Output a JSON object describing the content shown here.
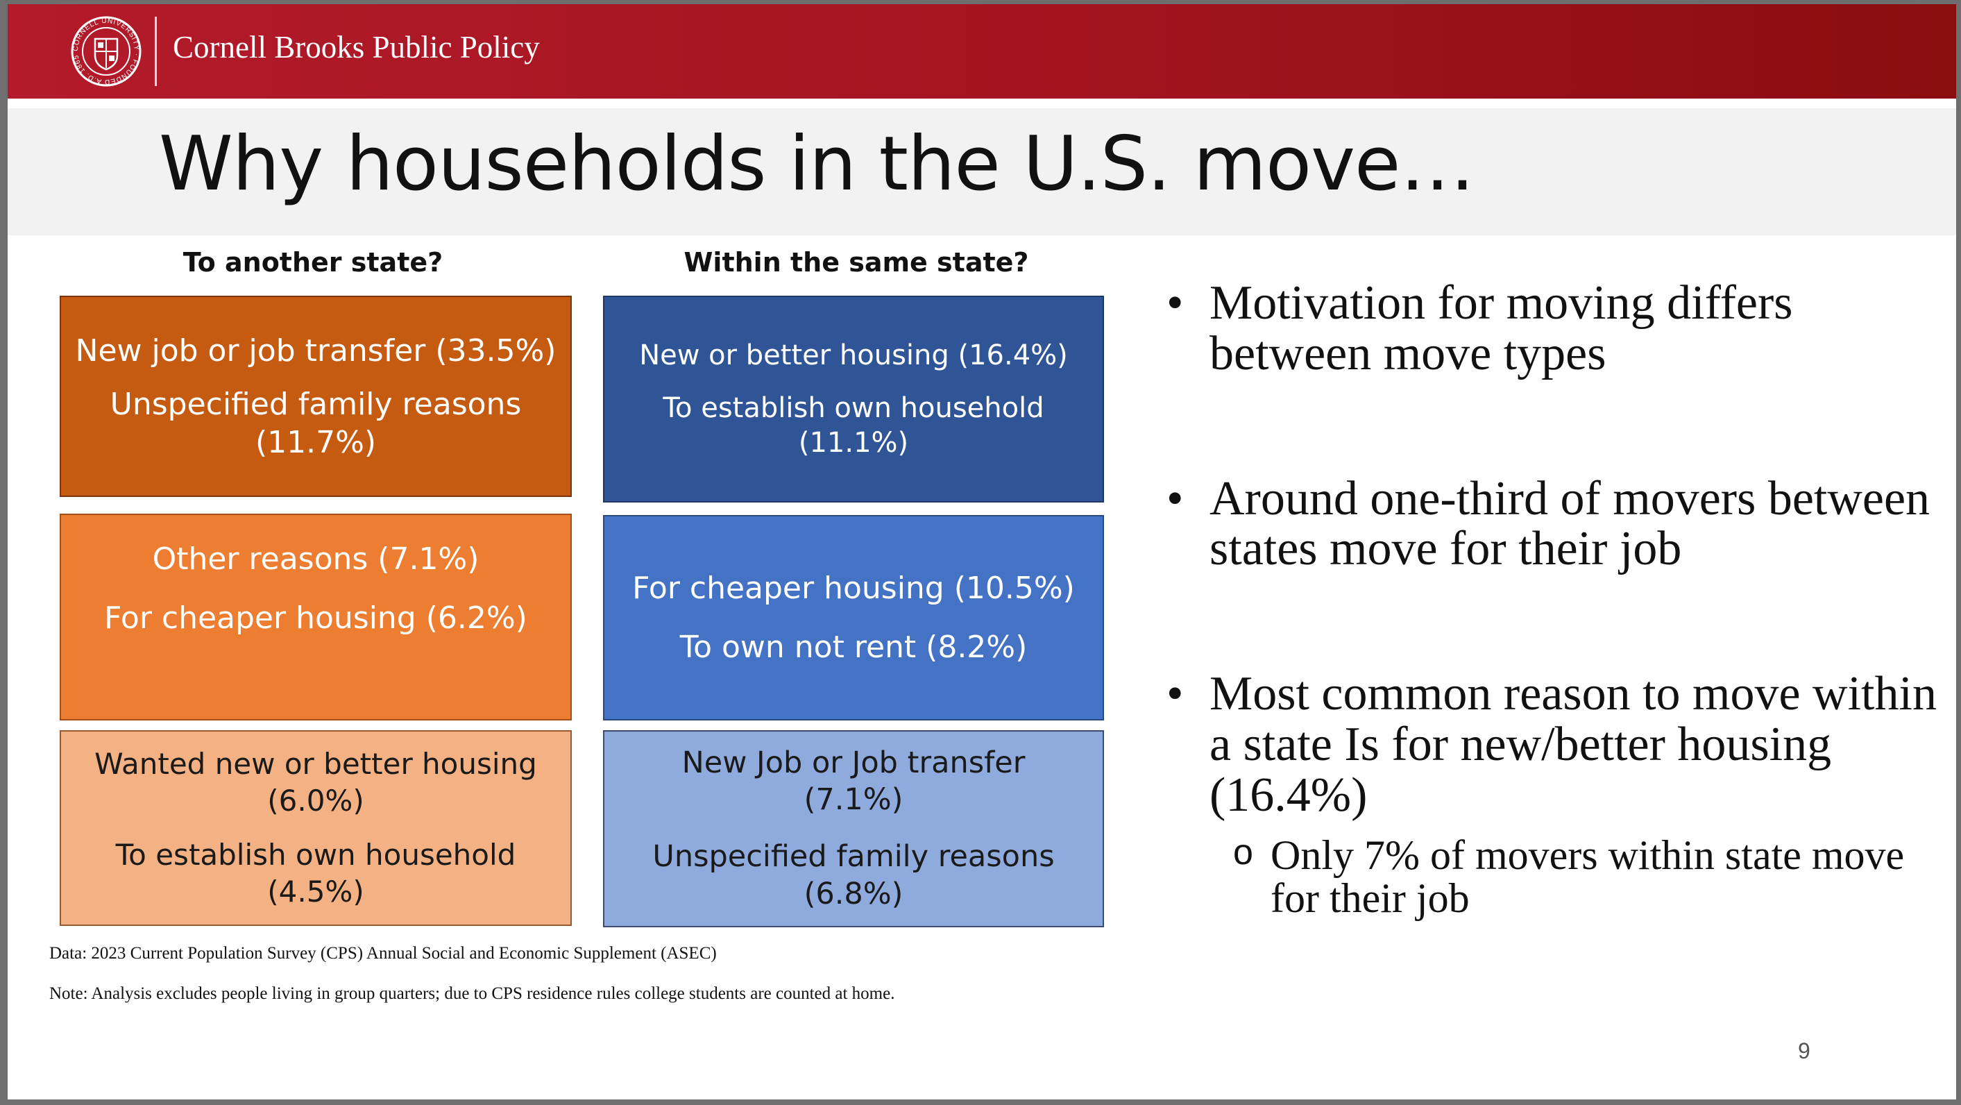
{
  "header": {
    "brand": "Cornell Brooks Public Policy",
    "seal_text": "CORNELL UNIVERSITY · FOUNDED A.D. 1865"
  },
  "title": "Why households in the U.S. move…",
  "columns": [
    {
      "heading": "To another state?",
      "boxes": [
        {
          "color": "#c55a11",
          "lines": [
            "New job or job transfer (33.5%)",
            "Unspecified family reasons (11.7%)"
          ]
        },
        {
          "color": "#ed7d31",
          "lines": [
            "Other reasons (7.1%)",
            "For cheaper housing (6.2%)"
          ]
        },
        {
          "color": "#f4b183",
          "lines": [
            "Wanted new or better housing (6.0%)",
            "To establish own household (4.5%)"
          ]
        }
      ]
    },
    {
      "heading": "Within the same state?",
      "boxes": [
        {
          "color": "#2f5597",
          "lines": [
            "New or better housing (16.4%)",
            "To establish own household (11.1%)"
          ]
        },
        {
          "color": "#4472c4",
          "lines": [
            "For cheaper housing (10.5%)",
            "To own not rent (8.2%)"
          ]
        },
        {
          "color": "#8faadc",
          "lines": [
            "New Job or Job transfer (7.1%)",
            "Unspecified family reasons (6.8%)"
          ]
        }
      ]
    }
  ],
  "bullets": [
    {
      "text": "Motivation for moving differs between move types"
    },
    {
      "text": "Around one-third of movers between states move for their job"
    },
    {
      "text": "Most common reason to move within a state Is for new/better housing (16.4%)"
    }
  ],
  "sub_bullet": "Only 7% of movers within state move for their job",
  "notes": {
    "data": "Data: 2023 Current Population Survey (CPS) Annual Social and Economic Supplement (ASEC)",
    "note": "Note: Analysis excludes people living in group quarters; due to CPS residence rules college students are counted at home."
  },
  "page_number": "9"
}
